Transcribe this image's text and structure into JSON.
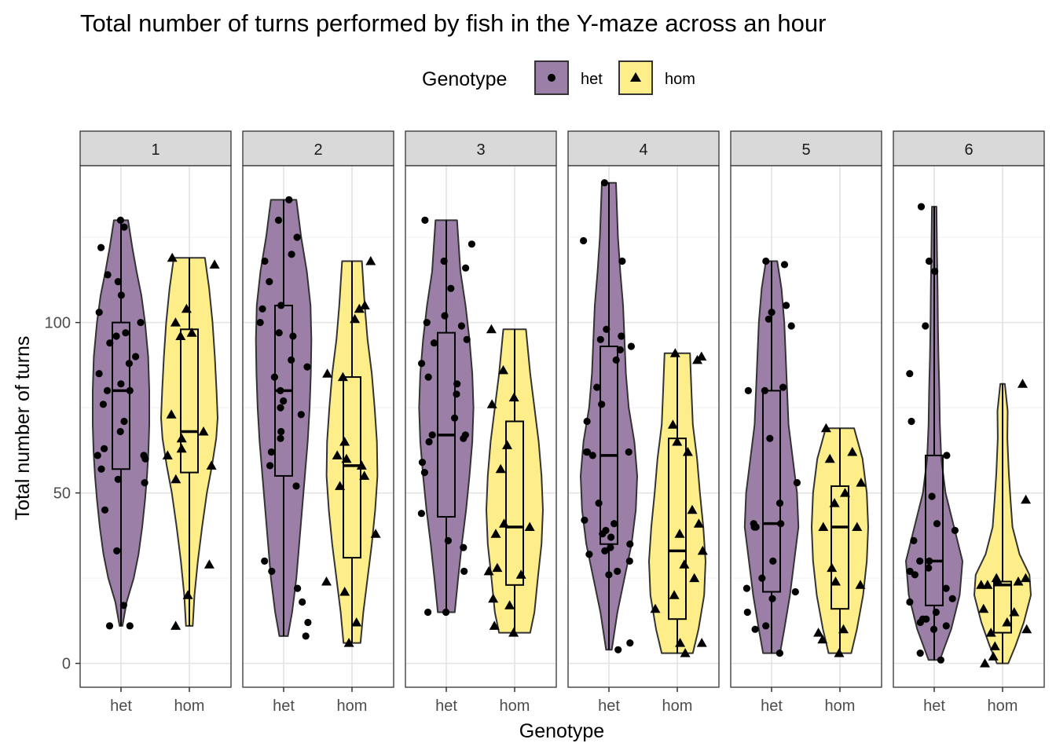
{
  "chart_data": {
    "type": "violin",
    "title": "Total number of turns performed by fish in the Y-maze across an hour",
    "xlabel": "Genotype",
    "ylabel": "Total number of turns",
    "categories": [
      "het",
      "hom"
    ],
    "facets": [
      "1",
      "2",
      "3",
      "4",
      "5",
      "6"
    ],
    "ylim": [
      -7,
      146
    ],
    "yticks": [
      0,
      50,
      100
    ],
    "grid": true,
    "legend": {
      "title": "Genotype",
      "position": "top",
      "entries": [
        {
          "label": "het",
          "color": "#7b5a8c",
          "shape": "circle"
        },
        {
          "label": "hom",
          "color": "#fde94f",
          "shape": "triangle"
        }
      ]
    },
    "colors": {
      "het": "#9b7fa6",
      "hom": "#fdee8a"
    },
    "panels": [
      {
        "facet": "1",
        "het": {
          "violin": [
            [
              11,
              0.05
            ],
            [
              18,
              0.2
            ],
            [
              25,
              0.45
            ],
            [
              32,
              0.62
            ],
            [
              40,
              0.75
            ],
            [
              48,
              0.85
            ],
            [
              55,
              0.92
            ],
            [
              62,
              0.97
            ],
            [
              70,
              1.0
            ],
            [
              80,
              1.0
            ],
            [
              90,
              0.96
            ],
            [
              100,
              0.85
            ],
            [
              108,
              0.72
            ],
            [
              115,
              0.55
            ],
            [
              122,
              0.4
            ],
            [
              130,
              0.25
            ]
          ],
          "box": {
            "q1": 57,
            "median": 80,
            "q3": 100,
            "min": 11,
            "max": 130
          },
          "points": [
            130,
            128,
            122,
            114,
            112,
            108,
            103,
            100,
            97,
            96,
            94,
            90,
            88,
            85,
            82,
            80,
            80,
            76,
            71,
            68,
            63,
            61,
            61,
            60,
            57,
            54,
            53,
            45,
            33,
            17,
            11,
            11
          ]
        },
        "hom": {
          "violin": [
            [
              11,
              0.12
            ],
            [
              20,
              0.18
            ],
            [
              30,
              0.3
            ],
            [
              40,
              0.45
            ],
            [
              50,
              0.62
            ],
            [
              58,
              0.8
            ],
            [
              66,
              0.95
            ],
            [
              72,
              1.0
            ],
            [
              80,
              0.96
            ],
            [
              90,
              0.9
            ],
            [
              100,
              0.82
            ],
            [
              110,
              0.7
            ],
            [
              119,
              0.55
            ]
          ],
          "box": {
            "q1": 56,
            "median": 68,
            "q3": 98,
            "min": 11,
            "max": 119
          },
          "points": [
            119,
            117,
            104,
            100,
            97,
            96,
            73,
            68,
            66,
            63,
            61,
            58,
            54,
            29,
            20,
            11
          ]
        }
      },
      {
        "facet": "2",
        "het": {
          "violin": [
            [
              8,
              0.15
            ],
            [
              15,
              0.3
            ],
            [
              25,
              0.45
            ],
            [
              35,
              0.55
            ],
            [
              45,
              0.65
            ],
            [
              55,
              0.75
            ],
            [
              65,
              0.85
            ],
            [
              75,
              0.92
            ],
            [
              85,
              0.96
            ],
            [
              95,
              0.98
            ],
            [
              105,
              0.95
            ],
            [
              115,
              0.82
            ],
            [
              125,
              0.62
            ],
            [
              136,
              0.45
            ]
          ],
          "box": {
            "q1": 55,
            "median": 80,
            "q3": 105,
            "min": 8,
            "max": 136
          },
          "points": [
            136,
            130,
            125,
            120,
            118,
            112,
            105,
            104,
            100,
            97,
            96,
            89,
            87,
            84,
            80,
            77,
            75,
            73,
            68,
            66,
            62,
            58,
            52,
            30,
            27,
            22,
            18,
            12,
            8
          ]
        },
        "hom": {
          "violin": [
            [
              6,
              0.3
            ],
            [
              15,
              0.4
            ],
            [
              25,
              0.55
            ],
            [
              35,
              0.7
            ],
            [
              45,
              0.82
            ],
            [
              55,
              0.9
            ],
            [
              65,
              0.88
            ],
            [
              75,
              0.8
            ],
            [
              85,
              0.7
            ],
            [
              95,
              0.55
            ],
            [
              105,
              0.45
            ],
            [
              118,
              0.35
            ]
          ],
          "box": {
            "q1": 31,
            "median": 58,
            "q3": 84,
            "min": 6,
            "max": 118
          },
          "points": [
            118,
            105,
            104,
            101,
            85,
            84,
            65,
            61,
            60,
            58,
            55,
            52,
            38,
            24,
            21,
            12,
            6
          ]
        }
      },
      {
        "facet": "3",
        "het": {
          "violin": [
            [
              15,
              0.3
            ],
            [
              25,
              0.42
            ],
            [
              35,
              0.55
            ],
            [
              45,
              0.7
            ],
            [
              55,
              0.82
            ],
            [
              65,
              0.92
            ],
            [
              75,
              0.96
            ],
            [
              85,
              0.92
            ],
            [
              95,
              0.82
            ],
            [
              105,
              0.68
            ],
            [
              115,
              0.5
            ],
            [
              130,
              0.38
            ]
          ],
          "box": {
            "q1": 43,
            "median": 67,
            "q3": 97,
            "min": 15,
            "max": 130
          },
          "points": [
            130,
            123,
            118,
            116,
            110,
            102,
            100,
            99,
            95,
            94,
            88,
            84,
            82,
            79,
            72,
            67,
            67,
            66,
            65,
            59,
            56,
            44,
            36,
            34,
            27,
            15,
            15
          ]
        },
        "hom": {
          "violin": [
            [
              9,
              0.55
            ],
            [
              15,
              0.7
            ],
            [
              25,
              0.82
            ],
            [
              35,
              0.95
            ],
            [
              45,
              1.0
            ],
            [
              55,
              0.95
            ],
            [
              65,
              0.85
            ],
            [
              75,
              0.7
            ],
            [
              85,
              0.55
            ],
            [
              98,
              0.4
            ]
          ],
          "box": {
            "q1": 23,
            "median": 40,
            "q3": 71,
            "min": 9,
            "max": 98
          },
          "points": [
            98,
            86,
            78,
            76,
            64,
            57,
            41,
            40,
            38,
            28,
            27,
            26,
            19,
            17,
            11,
            9
          ]
        }
      },
      {
        "facet": "4",
        "het": {
          "violin": [
            [
              4,
              0.1
            ],
            [
              15,
              0.3
            ],
            [
              25,
              0.55
            ],
            [
              35,
              0.8
            ],
            [
              45,
              0.95
            ],
            [
              55,
              1.0
            ],
            [
              65,
              0.9
            ],
            [
              75,
              0.7
            ],
            [
              85,
              0.6
            ],
            [
              95,
              0.55
            ],
            [
              105,
              0.5
            ],
            [
              115,
              0.4
            ],
            [
              125,
              0.32
            ],
            [
              141,
              0.25
            ]
          ],
          "box": {
            "q1": 35,
            "median": 61,
            "q3": 93,
            "min": 4,
            "max": 141
          },
          "points": [
            141,
            124,
            118,
            98,
            96,
            95,
            93,
            92,
            89,
            81,
            76,
            71,
            62,
            62,
            62,
            61,
            47,
            42,
            41,
            39,
            38,
            37,
            35,
            34,
            33,
            32,
            30,
            27,
            26,
            6,
            4
          ]
        },
        "hom": {
          "violin": [
            [
              3,
              0.55
            ],
            [
              10,
              0.75
            ],
            [
              20,
              0.95
            ],
            [
              30,
              1.0
            ],
            [
              40,
              0.92
            ],
            [
              50,
              0.8
            ],
            [
              60,
              0.7
            ],
            [
              70,
              0.55
            ],
            [
              80,
              0.5
            ],
            [
              91,
              0.45
            ]
          ],
          "box": {
            "q1": 13,
            "median": 33,
            "q3": 66,
            "min": 3,
            "max": 91
          },
          "points": [
            91,
            90,
            89,
            70,
            65,
            62,
            45,
            41,
            38,
            33,
            29,
            25,
            20,
            16,
            6,
            6,
            3
          ]
        }
      },
      {
        "facet": "5",
        "het": {
          "violin": [
            [
              3,
              0.3
            ],
            [
              10,
              0.45
            ],
            [
              20,
              0.65
            ],
            [
              30,
              0.8
            ],
            [
              40,
              0.95
            ],
            [
              50,
              0.9
            ],
            [
              60,
              0.75
            ],
            [
              70,
              0.6
            ],
            [
              80,
              0.55
            ],
            [
              90,
              0.5
            ],
            [
              100,
              0.45
            ],
            [
              110,
              0.35
            ],
            [
              118,
              0.2
            ]
          ],
          "box": {
            "q1": 21,
            "median": 41,
            "q3": 80,
            "min": 3,
            "max": 118
          },
          "points": [
            118,
            117,
            105,
            103,
            101,
            99,
            81,
            80,
            80,
            66,
            53,
            47,
            41,
            41,
            40,
            40,
            30,
            25,
            22,
            21,
            19,
            15,
            11,
            10,
            3
          ]
        },
        "hom": {
          "violin": [
            [
              3,
              0.4
            ],
            [
              10,
              0.6
            ],
            [
              20,
              0.82
            ],
            [
              30,
              0.95
            ],
            [
              40,
              1.0
            ],
            [
              50,
              0.95
            ],
            [
              60,
              0.8
            ],
            [
              69,
              0.5
            ]
          ],
          "box": {
            "q1": 16,
            "median": 40,
            "q3": 52,
            "min": 3,
            "max": 69
          },
          "points": [
            69,
            62,
            60,
            53,
            50,
            47,
            40,
            40,
            28,
            24,
            23,
            10,
            9,
            7,
            3
          ]
        }
      },
      {
        "facet": "6",
        "het": {
          "violin": [
            [
              1,
              0.2
            ],
            [
              10,
              0.6
            ],
            [
              20,
              0.9
            ],
            [
              30,
              1.0
            ],
            [
              40,
              0.7
            ],
            [
              50,
              0.4
            ],
            [
              60,
              0.25
            ],
            [
              70,
              0.2
            ],
            [
              80,
              0.18
            ],
            [
              90,
              0.15
            ],
            [
              100,
              0.13
            ],
            [
              110,
              0.12
            ],
            [
              120,
              0.1
            ],
            [
              134,
              0.08
            ]
          ],
          "box": {
            "q1": 17,
            "median": 30,
            "q3": 61,
            "min": 1,
            "max": 134
          },
          "points": [
            134,
            118,
            115,
            99,
            85,
            71,
            61,
            49,
            41,
            39,
            36,
            30,
            30,
            28,
            27,
            26,
            22,
            19,
            18,
            15,
            13,
            13,
            12,
            11,
            10,
            3,
            1
          ]
        },
        "hom": {
          "violin": [
            [
              0,
              0.2
            ],
            [
              5,
              0.45
            ],
            [
              12,
              0.75
            ],
            [
              20,
              1.0
            ],
            [
              26,
              0.95
            ],
            [
              32,
              0.6
            ],
            [
              40,
              0.35
            ],
            [
              48,
              0.28
            ],
            [
              56,
              0.22
            ],
            [
              66,
              0.17
            ],
            [
              74,
              0.18
            ],
            [
              82,
              0.08
            ]
          ],
          "box": {
            "q1": 9,
            "median": 23,
            "q3": 24,
            "min": 0,
            "max": 82
          },
          "points": [
            82,
            48,
            25,
            25,
            24,
            24,
            23,
            23,
            16,
            15,
            12,
            10,
            9,
            5,
            2,
            0
          ]
        }
      }
    ]
  }
}
